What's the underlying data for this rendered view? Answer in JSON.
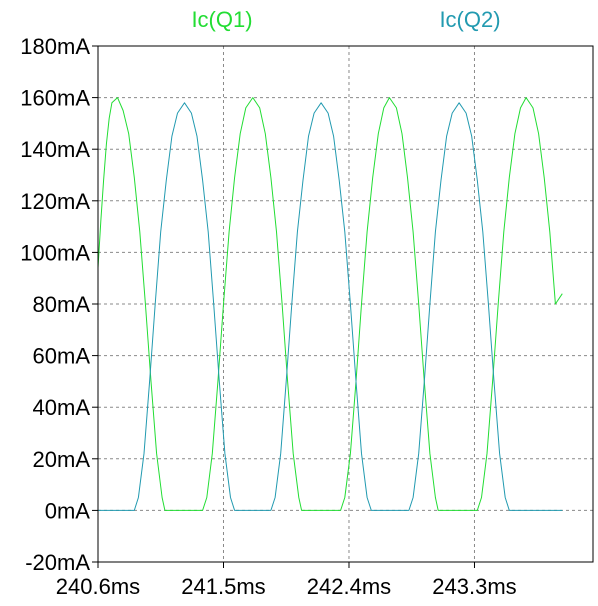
{
  "chart_data": {
    "type": "line",
    "title": "",
    "xlabel": "",
    "ylabel": "",
    "x_unit": "ms",
    "y_unit": "mA",
    "xlim": [
      240.6,
      244.15
    ],
    "ylim": [
      -20,
      180
    ],
    "x_ticks": [
      240.6,
      241.5,
      242.4,
      243.3
    ],
    "x_tick_labels": [
      "240.6ms",
      "241.5ms",
      "242.4ms",
      "243.3ms"
    ],
    "y_ticks": [
      -20,
      0,
      20,
      40,
      60,
      80,
      100,
      120,
      140,
      160,
      180
    ],
    "y_tick_labels": [
      "-20mA",
      "0mA",
      "20mA",
      "40mA",
      "60mA",
      "80mA",
      "100mA",
      "120mA",
      "140mA",
      "160mA",
      "180mA"
    ],
    "grid": true,
    "legend_position": "top",
    "series": [
      {
        "name": "Ic(Q1)",
        "color": "#22dd33",
        "points": [
          [
            240.6,
            94
          ],
          [
            240.6,
            94
          ],
          [
            240.62,
            112
          ],
          [
            240.64,
            128
          ],
          [
            240.66,
            142
          ],
          [
            240.68,
            152
          ],
          [
            240.7,
            158
          ],
          [
            240.74,
            160
          ],
          [
            240.78,
            155
          ],
          [
            240.82,
            146
          ],
          [
            240.86,
            129
          ],
          [
            240.9,
            108
          ],
          [
            240.94,
            80
          ],
          [
            240.98,
            50
          ],
          [
            241.02,
            22
          ],
          [
            241.06,
            5
          ],
          [
            241.08,
            0
          ],
          [
            241.08,
            0
          ],
          [
            241.35,
            0
          ],
          [
            241.35,
            0
          ],
          [
            241.38,
            5
          ],
          [
            241.42,
            22
          ],
          [
            241.46,
            50
          ],
          [
            241.5,
            80
          ],
          [
            241.54,
            108
          ],
          [
            241.58,
            129
          ],
          [
            241.62,
            146
          ],
          [
            241.66,
            156
          ],
          [
            241.71,
            160
          ],
          [
            241.76,
            156
          ],
          [
            241.8,
            146
          ],
          [
            241.84,
            129
          ],
          [
            241.88,
            108
          ],
          [
            241.92,
            80
          ],
          [
            241.96,
            50
          ],
          [
            242.0,
            22
          ],
          [
            242.04,
            5
          ],
          [
            242.06,
            0
          ],
          [
            242.06,
            0
          ],
          [
            242.34,
            0
          ],
          [
            242.34,
            0
          ],
          [
            242.37,
            5
          ],
          [
            242.41,
            22
          ],
          [
            242.45,
            50
          ],
          [
            242.49,
            80
          ],
          [
            242.53,
            108
          ],
          [
            242.57,
            129
          ],
          [
            242.61,
            146
          ],
          [
            242.65,
            156
          ],
          [
            242.69,
            160
          ],
          [
            242.74,
            156
          ],
          [
            242.78,
            146
          ],
          [
            242.82,
            129
          ],
          [
            242.86,
            108
          ],
          [
            242.9,
            80
          ],
          [
            242.94,
            50
          ],
          [
            242.98,
            22
          ],
          [
            243.02,
            5
          ],
          [
            243.04,
            0
          ],
          [
            243.04,
            0
          ],
          [
            243.32,
            0
          ],
          [
            243.32,
            0
          ],
          [
            243.35,
            5
          ],
          [
            243.39,
            22
          ],
          [
            243.43,
            50
          ],
          [
            243.47,
            80
          ],
          [
            243.51,
            108
          ],
          [
            243.55,
            129
          ],
          [
            243.59,
            146
          ],
          [
            243.63,
            156
          ],
          [
            243.67,
            160
          ],
          [
            243.72,
            156
          ],
          [
            243.76,
            146
          ],
          [
            243.8,
            129
          ],
          [
            243.84,
            108
          ],
          [
            243.88,
            80
          ],
          [
            243.93,
            84
          ]
        ]
      },
      {
        "name": "Ic(Q2)",
        "color": "#229ab0",
        "points": [
          [
            240.6,
            0
          ],
          [
            240.86,
            0
          ],
          [
            240.86,
            0
          ],
          [
            240.89,
            5
          ],
          [
            240.93,
            22
          ],
          [
            240.97,
            50
          ],
          [
            241.01,
            80
          ],
          [
            241.05,
            108
          ],
          [
            241.09,
            128
          ],
          [
            241.13,
            145
          ],
          [
            241.17,
            154
          ],
          [
            241.22,
            158
          ],
          [
            241.27,
            154
          ],
          [
            241.31,
            145
          ],
          [
            241.35,
            128
          ],
          [
            241.39,
            108
          ],
          [
            241.43,
            80
          ],
          [
            241.47,
            50
          ],
          [
            241.51,
            22
          ],
          [
            241.55,
            5
          ],
          [
            241.58,
            0
          ],
          [
            241.58,
            0
          ],
          [
            241.84,
            0
          ],
          [
            241.84,
            0
          ],
          [
            241.87,
            5
          ],
          [
            241.91,
            22
          ],
          [
            241.95,
            50
          ],
          [
            241.99,
            80
          ],
          [
            242.03,
            108
          ],
          [
            242.07,
            128
          ],
          [
            242.11,
            145
          ],
          [
            242.15,
            154
          ],
          [
            242.2,
            158
          ],
          [
            242.25,
            154
          ],
          [
            242.29,
            145
          ],
          [
            242.33,
            128
          ],
          [
            242.37,
            108
          ],
          [
            242.41,
            80
          ],
          [
            242.45,
            50
          ],
          [
            242.49,
            22
          ],
          [
            242.53,
            5
          ],
          [
            242.56,
            0
          ],
          [
            242.56,
            0
          ],
          [
            242.83,
            0
          ],
          [
            242.83,
            0
          ],
          [
            242.86,
            5
          ],
          [
            242.9,
            22
          ],
          [
            242.94,
            50
          ],
          [
            242.98,
            80
          ],
          [
            243.02,
            108
          ],
          [
            243.06,
            128
          ],
          [
            243.1,
            145
          ],
          [
            243.14,
            154
          ],
          [
            243.19,
            158
          ],
          [
            243.24,
            154
          ],
          [
            243.28,
            145
          ],
          [
            243.32,
            128
          ],
          [
            243.36,
            108
          ],
          [
            243.4,
            80
          ],
          [
            243.44,
            50
          ],
          [
            243.48,
            22
          ],
          [
            243.52,
            5
          ],
          [
            243.55,
            0
          ],
          [
            243.55,
            0
          ],
          [
            243.93,
            0
          ]
        ]
      }
    ]
  }
}
